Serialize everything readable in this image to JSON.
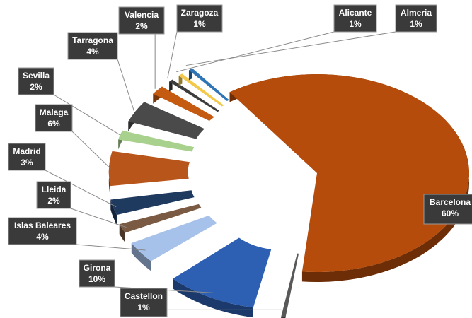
{
  "chart_data": {
    "type": "pie",
    "style": "3d-exploded",
    "title": "",
    "label_format": "category-and-percent",
    "label_style": {
      "background": "#3a3a3a",
      "text_color": "#ffffff",
      "border": "#9a9a9a"
    },
    "slices": [
      {
        "category": "Barcelona",
        "label": "Barcelona",
        "percent_label": "60%",
        "value": 60,
        "color": "#b54c0b"
      },
      {
        "category": "Castellon",
        "label": "Castellon",
        "percent_label": "1%",
        "value": 1,
        "color": "#585858"
      },
      {
        "category": "Girona",
        "label": "Girona",
        "percent_label": "10%",
        "value": 10,
        "color": "#2d5fb3"
      },
      {
        "category": "Islas Baleares",
        "label": "Islas Baleares",
        "percent_label": "4%",
        "value": 4,
        "color": "#a6c2ea"
      },
      {
        "category": "Lleida",
        "label": "Lleida",
        "percent_label": "2%",
        "value": 2,
        "color": "#7b5a43"
      },
      {
        "category": "Madrid",
        "label": "Madrid",
        "percent_label": "3%",
        "value": 3,
        "color": "#1f3a5f"
      },
      {
        "category": "Malaga",
        "label": "Malaga",
        "percent_label": "6%",
        "value": 6,
        "color": "#b8551a"
      },
      {
        "category": "Sevilla",
        "label": "Sevilla",
        "percent_label": "2%",
        "value": 2,
        "color": "#a9d18e"
      },
      {
        "category": "Tarragona",
        "label": "Tarragona",
        "percent_label": "4%",
        "value": 4,
        "color": "#4a4a4a"
      },
      {
        "category": "Valencia",
        "label": "Valencia",
        "percent_label": "2%",
        "value": 2,
        "color": "#c55a11"
      },
      {
        "category": "Zaragoza",
        "label": "Zaragoza",
        "percent_label": "1%",
        "value": 1,
        "color": "#3c3c3c"
      },
      {
        "category": "Alicante",
        "label": "Alicante",
        "percent_label": "1%",
        "value": 1,
        "color": "#f2c94c"
      },
      {
        "category": "Almeria",
        "label": "Almeria",
        "percent_label": "1%",
        "value": 1,
        "color": "#2f75b5"
      }
    ]
  }
}
